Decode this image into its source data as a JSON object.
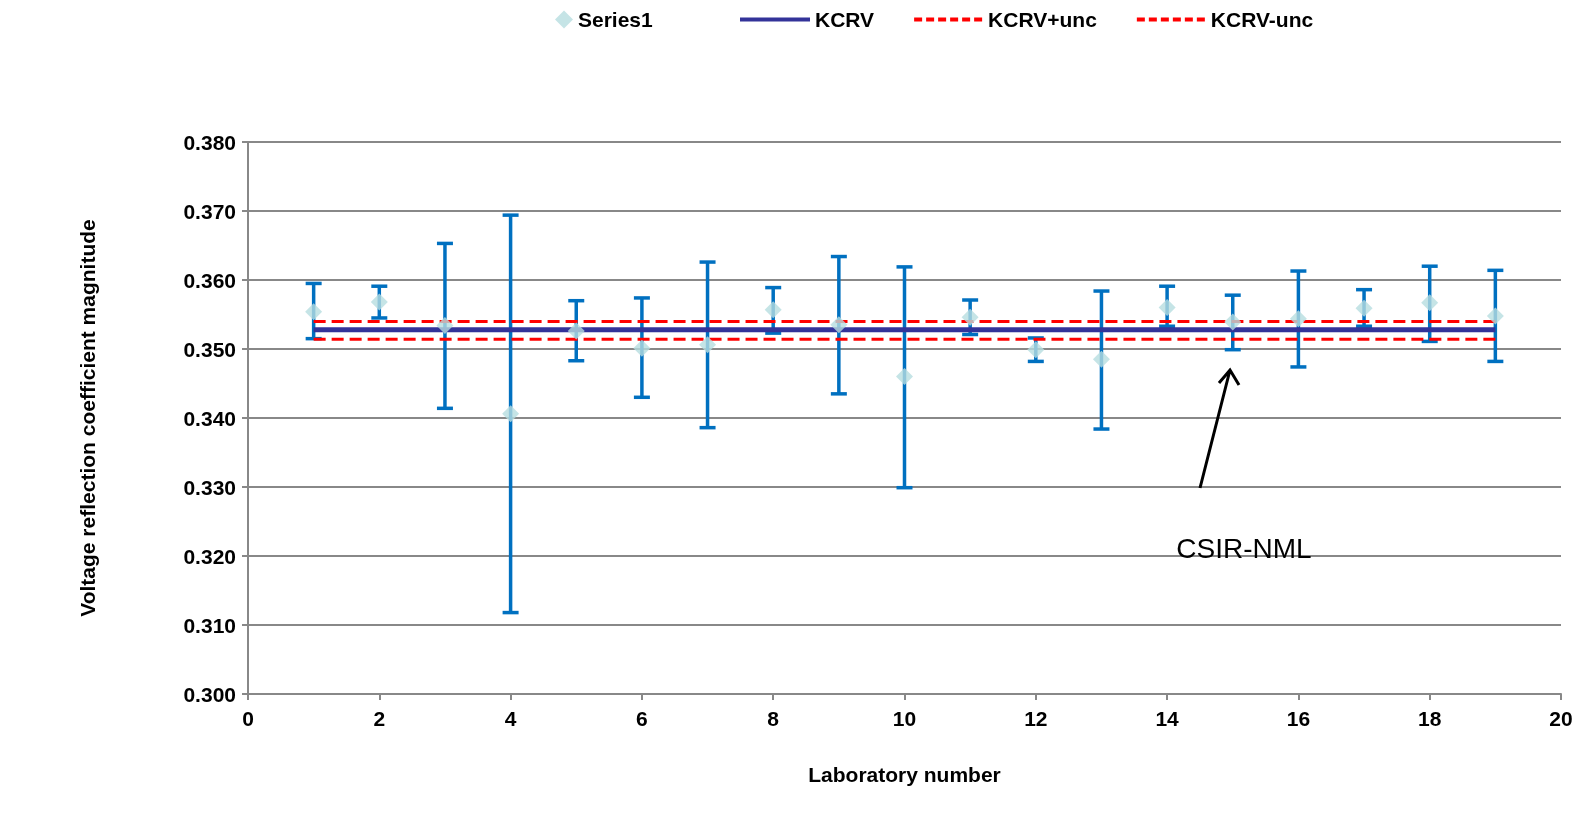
{
  "chart_data": {
    "type": "scatter",
    "xlabel": "Laboratory number",
    "ylabel": "Voltage reflection coefficient magnitude",
    "xlim": [
      0,
      20
    ],
    "xticks": [
      0,
      2,
      4,
      6,
      8,
      10,
      12,
      14,
      16,
      18,
      20
    ],
    "ylim": [
      0.3,
      0.38
    ],
    "yticks": [
      {
        "value": 0.3,
        "label": "0.300"
      },
      {
        "value": 0.31,
        "label": "0.310"
      },
      {
        "value": 0.32,
        "label": "0.320"
      },
      {
        "value": 0.33,
        "label": "0.330"
      },
      {
        "value": 0.34,
        "label": "0.340"
      },
      {
        "value": 0.35,
        "label": "0.350"
      },
      {
        "value": 0.36,
        "label": "0.360"
      },
      {
        "value": 0.37,
        "label": "0.370"
      },
      {
        "value": 0.38,
        "label": "0.380"
      }
    ],
    "grid": "y",
    "legend": "top",
    "annotations": [
      "CSIR-NML"
    ],
    "series": [
      {
        "name": "Series1",
        "marker": "diamond",
        "color": "#b7dde0",
        "x": [
          1,
          2,
          3,
          4,
          5,
          6,
          7,
          8,
          9,
          10,
          11,
          12,
          13,
          14,
          15,
          16,
          17,
          18,
          19
        ],
        "values": [
          0.3554,
          0.3568,
          0.3534,
          0.3406,
          0.3526,
          0.3501,
          0.3506,
          0.3557,
          0.3535,
          0.346,
          0.3546,
          0.3499,
          0.3485,
          0.356,
          0.3539,
          0.3544,
          0.3559,
          0.3567,
          0.3548
        ],
        "errors": [
          [
            0.3515,
            0.3595
          ],
          [
            0.3545,
            0.3591
          ],
          [
            0.3414,
            0.3653
          ],
          [
            0.3118,
            0.3694
          ],
          [
            0.3483,
            0.357
          ],
          [
            0.343,
            0.3574
          ],
          [
            0.3386,
            0.3626
          ],
          [
            0.3523,
            0.3589
          ],
          [
            0.3435,
            0.3634
          ],
          [
            0.3299,
            0.3619
          ],
          [
            0.3521,
            0.3571
          ],
          [
            0.3482,
            0.3516
          ],
          [
            0.3384,
            0.3584
          ],
          [
            0.3533,
            0.3591
          ],
          [
            0.3499,
            0.3578
          ],
          [
            0.3474,
            0.3613
          ],
          [
            0.3533,
            0.3586
          ],
          [
            0.3511,
            0.362
          ],
          [
            0.3482,
            0.3614
          ]
        ]
      },
      {
        "name": "KCRV",
        "type": "line",
        "marker": "none",
        "line_style": "solid",
        "color": "#333399",
        "x": [
          1,
          19
        ],
        "values": [
          0.3528,
          0.3528
        ]
      },
      {
        "name": "KCRV+unc",
        "type": "line",
        "marker": "none",
        "line_style": "dashed",
        "color": "#ff0000",
        "x": [
          1,
          19
        ],
        "values": [
          0.354,
          0.354
        ]
      },
      {
        "name": "KCRV-unc",
        "type": "line",
        "marker": "none",
        "line_style": "dashed",
        "color": "#ff0000",
        "x": [
          1,
          19
        ],
        "values": [
          0.3514,
          0.3514
        ]
      }
    ]
  }
}
